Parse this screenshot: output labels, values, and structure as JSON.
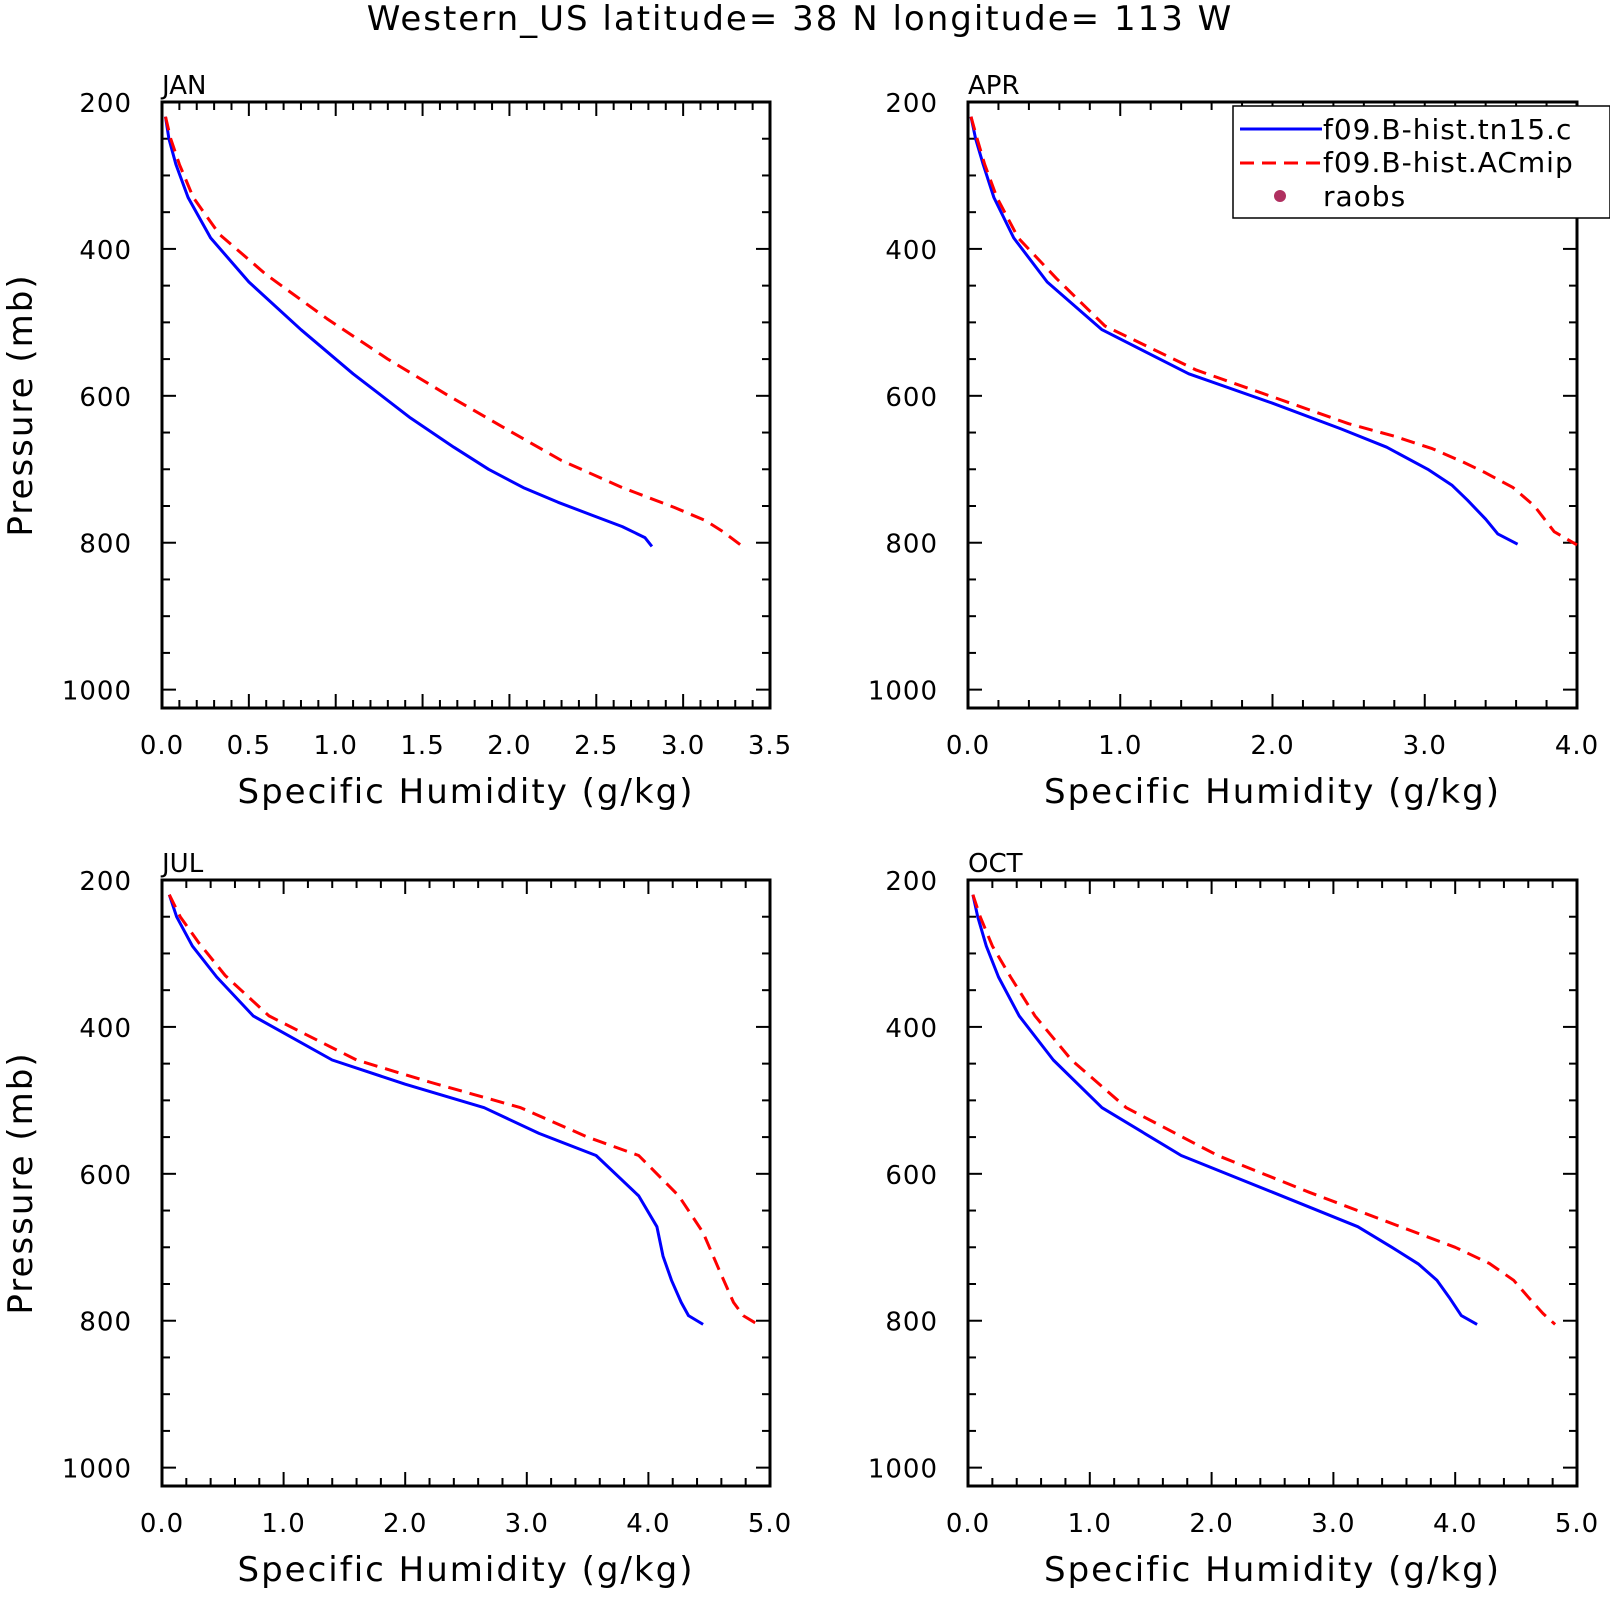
{
  "figure": {
    "title": "Western_US  latitude= 38 N longitude= 113 W"
  },
  "legend": {
    "entries": [
      {
        "label": "f09.B-hist.tn15.c",
        "color": "#0000ff",
        "style": "solid"
      },
      {
        "label": "f09.B-hist.ACmip",
        "color": "#ff0000",
        "style": "dashed"
      },
      {
        "label": "raobs",
        "color": "#b03060",
        "style": "dot"
      }
    ]
  },
  "chart_data": [
    {
      "type": "line",
      "title": "JAN",
      "xlabel": "Specific Humidity (g/kg)",
      "ylabel": "Pressure (mb)",
      "xlim": [
        0,
        3.5
      ],
      "ylim": [
        1025,
        200
      ],
      "xticks": [
        0.0,
        0.5,
        1.0,
        1.5,
        2.0,
        2.5,
        3.0,
        3.5
      ],
      "xtick_labels": [
        "0.0",
        "0.5",
        "1.0",
        "1.5",
        "2.0",
        "2.5",
        "3.0",
        "3.5"
      ],
      "yticks": [
        200,
        400,
        600,
        800,
        1000
      ],
      "ytick_labels": [
        "200",
        "400",
        "600",
        "800",
        "1000"
      ],
      "series": [
        {
          "name": "f09.B-hist.tn15.c",
          "color": "#0000ff",
          "style": "solid",
          "points": [
            [
              0.02,
              220
            ],
            [
              0.04,
              250
            ],
            [
              0.08,
              285
            ],
            [
              0.15,
              330
            ],
            [
              0.28,
              385
            ],
            [
              0.5,
              445
            ],
            [
              0.8,
              510
            ],
            [
              1.1,
              570
            ],
            [
              1.43,
              630
            ],
            [
              1.68,
              670
            ],
            [
              1.88,
              700
            ],
            [
              2.08,
              725
            ],
            [
              2.28,
              745
            ],
            [
              2.48,
              763
            ],
            [
              2.65,
              778
            ],
            [
              2.78,
              793
            ],
            [
              2.82,
              805
            ]
          ]
        },
        {
          "name": "f09.B-hist.ACmip",
          "color": "#ff0000",
          "style": "dashed",
          "points": [
            [
              0.02,
              220
            ],
            [
              0.05,
              250
            ],
            [
              0.1,
              285
            ],
            [
              0.18,
              330
            ],
            [
              0.33,
              380
            ],
            [
              0.6,
              435
            ],
            [
              0.95,
              495
            ],
            [
              1.3,
              550
            ],
            [
              1.65,
              600
            ],
            [
              1.98,
              645
            ],
            [
              2.3,
              688
            ],
            [
              2.65,
              725
            ],
            [
              2.95,
              752
            ],
            [
              3.13,
              770
            ],
            [
              3.23,
              785
            ],
            [
              3.33,
              803
            ]
          ]
        }
      ]
    },
    {
      "type": "line",
      "title": "APR",
      "xlabel": "Specific Humidity (g/kg)",
      "ylabel": "",
      "xlim": [
        0,
        4.0
      ],
      "ylim": [
        1025,
        200
      ],
      "xticks": [
        0.0,
        1.0,
        2.0,
        3.0,
        4.0
      ],
      "xtick_labels": [
        "0.0",
        "1.0",
        "2.0",
        "3.0",
        "4.0"
      ],
      "yticks": [
        200,
        400,
        600,
        800,
        1000
      ],
      "ytick_labels": [
        "200",
        "400",
        "600",
        "800",
        "1000"
      ],
      "series": [
        {
          "name": "f09.B-hist.tn15.c",
          "color": "#0000ff",
          "style": "solid",
          "points": [
            [
              0.02,
              220
            ],
            [
              0.05,
              250
            ],
            [
              0.1,
              285
            ],
            [
              0.17,
              330
            ],
            [
              0.3,
              385
            ],
            [
              0.52,
              445
            ],
            [
              0.88,
              510
            ],
            [
              1.45,
              570
            ],
            [
              2.0,
              610
            ],
            [
              2.45,
              645
            ],
            [
              2.75,
              670
            ],
            [
              3.02,
              700
            ],
            [
              3.18,
              722
            ],
            [
              3.28,
              742
            ],
            [
              3.4,
              768
            ],
            [
              3.48,
              788
            ],
            [
              3.61,
              802
            ]
          ]
        },
        {
          "name": "f09.B-hist.ACmip",
          "color": "#ff0000",
          "style": "dashed",
          "points": [
            [
              0.02,
              220
            ],
            [
              0.06,
              250
            ],
            [
              0.11,
              285
            ],
            [
              0.19,
              330
            ],
            [
              0.33,
              385
            ],
            [
              0.58,
              440
            ],
            [
              0.9,
              505
            ],
            [
              1.5,
              565
            ],
            [
              2.05,
              605
            ],
            [
              2.5,
              638
            ],
            [
              2.8,
              655
            ],
            [
              3.05,
              672
            ],
            [
              3.25,
              690
            ],
            [
              3.4,
              705
            ],
            [
              3.58,
              725
            ],
            [
              3.72,
              750
            ],
            [
              3.85,
              785
            ],
            [
              4.0,
              803
            ]
          ]
        }
      ]
    },
    {
      "type": "line",
      "title": "JUL",
      "xlabel": "Specific Humidity (g/kg)",
      "ylabel": "Pressure (mb)",
      "xlim": [
        0,
        5.0
      ],
      "ylim": [
        1025,
        200
      ],
      "xticks": [
        0.0,
        1.0,
        2.0,
        3.0,
        4.0,
        5.0
      ],
      "xtick_labels": [
        "0.0",
        "1.0",
        "2.0",
        "3.0",
        "4.0",
        "5.0"
      ],
      "yticks": [
        200,
        400,
        600,
        800,
        1000
      ],
      "ytick_labels": [
        "200",
        "400",
        "600",
        "800",
        "1000"
      ],
      "series": [
        {
          "name": "f09.B-hist.tn15.c",
          "color": "#0000ff",
          "style": "solid",
          "points": [
            [
              0.06,
              220
            ],
            [
              0.12,
              250
            ],
            [
              0.25,
              290
            ],
            [
              0.45,
              332
            ],
            [
              0.75,
              385
            ],
            [
              1.4,
              445
            ],
            [
              2.0,
              478
            ],
            [
              2.65,
              510
            ],
            [
              3.1,
              545
            ],
            [
              3.57,
              575
            ],
            [
              3.92,
              630
            ],
            [
              4.07,
              672
            ],
            [
              4.12,
              712
            ],
            [
              4.19,
              745
            ],
            [
              4.27,
              775
            ],
            [
              4.33,
              793
            ],
            [
              4.45,
              805
            ]
          ]
        },
        {
          "name": "f09.B-hist.ACmip",
          "color": "#ff0000",
          "style": "dashed",
          "points": [
            [
              0.06,
              220
            ],
            [
              0.15,
              250
            ],
            [
              0.3,
              285
            ],
            [
              0.52,
              330
            ],
            [
              0.88,
              385
            ],
            [
              1.6,
              445
            ],
            [
              2.2,
              475
            ],
            [
              2.95,
              510
            ],
            [
              3.5,
              550
            ],
            [
              3.92,
              575
            ],
            [
              4.25,
              630
            ],
            [
              4.45,
              680
            ],
            [
              4.58,
              730
            ],
            [
              4.7,
              775
            ],
            [
              4.78,
              793
            ],
            [
              4.9,
              805
            ]
          ]
        }
      ]
    },
    {
      "type": "line",
      "title": "OCT",
      "xlabel": "Specific Humidity (g/kg)",
      "ylabel": "",
      "xlim": [
        0,
        5.0
      ],
      "ylim": [
        1025,
        200
      ],
      "xticks": [
        0.0,
        1.0,
        2.0,
        3.0,
        4.0,
        5.0
      ],
      "xtick_labels": [
        "0.0",
        "1.0",
        "2.0",
        "3.0",
        "4.0",
        "5.0"
      ],
      "yticks": [
        200,
        400,
        600,
        800,
        1000
      ],
      "ytick_labels": [
        "200",
        "400",
        "600",
        "800",
        "1000"
      ],
      "series": [
        {
          "name": "f09.B-hist.tn15.c",
          "color": "#0000ff",
          "style": "solid",
          "points": [
            [
              0.04,
              220
            ],
            [
              0.08,
              250
            ],
            [
              0.15,
              290
            ],
            [
              0.25,
              332
            ],
            [
              0.42,
              385
            ],
            [
              0.7,
              445
            ],
            [
              1.1,
              510
            ],
            [
              1.75,
              575
            ],
            [
              2.5,
              625
            ],
            [
              3.2,
              672
            ],
            [
              3.48,
              700
            ],
            [
              3.7,
              723
            ],
            [
              3.85,
              745
            ],
            [
              3.95,
              768
            ],
            [
              4.05,
              793
            ],
            [
              4.18,
              805
            ]
          ]
        },
        {
          "name": "f09.B-hist.ACmip",
          "color": "#ff0000",
          "style": "dashed",
          "points": [
            [
              0.04,
              220
            ],
            [
              0.1,
              250
            ],
            [
              0.2,
              290
            ],
            [
              0.35,
              332
            ],
            [
              0.55,
              385
            ],
            [
              0.85,
              445
            ],
            [
              1.3,
              510
            ],
            [
              2.05,
              575
            ],
            [
              2.8,
              625
            ],
            [
              3.55,
              672
            ],
            [
              4.0,
              700
            ],
            [
              4.28,
              722
            ],
            [
              4.48,
              745
            ],
            [
              4.6,
              768
            ],
            [
              4.72,
              790
            ],
            [
              4.82,
              805
            ]
          ]
        }
      ]
    }
  ]
}
